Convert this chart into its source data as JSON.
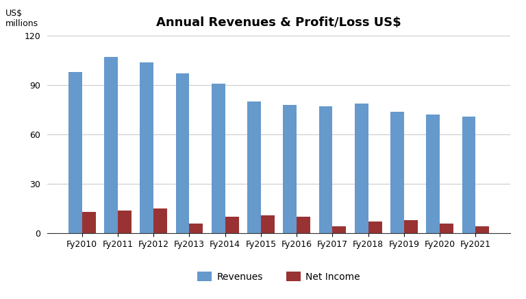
{
  "categories": [
    "Fy2010",
    "Fy2011",
    "Fy2012",
    "Fy2013",
    "Fy2014",
    "Fy2015",
    "Fy2016",
    "Fy2017",
    "Fy2018",
    "Fy2019",
    "Fy2020",
    "Fy2021"
  ],
  "revenues": [
    98,
    107,
    104,
    97,
    91,
    80,
    78,
    77,
    79,
    74,
    72,
    71
  ],
  "net_income": [
    13,
    14,
    15,
    6,
    10,
    11,
    10,
    4,
    7,
    8,
    6,
    4
  ],
  "revenue_color": "#6699CC",
  "net_income_color": "#993333",
  "title": "Annual Revenues & Profit/Loss US$",
  "ylim": [
    0,
    120
  ],
  "yticks": [
    0,
    30,
    60,
    90,
    120
  ],
  "bar_width": 0.38,
  "background_color": "#ffffff",
  "legend_labels": [
    "Revenues",
    "Net Income"
  ],
  "grid_color": "#cccccc",
  "tick_fontsize": 9,
  "title_fontsize": 13
}
